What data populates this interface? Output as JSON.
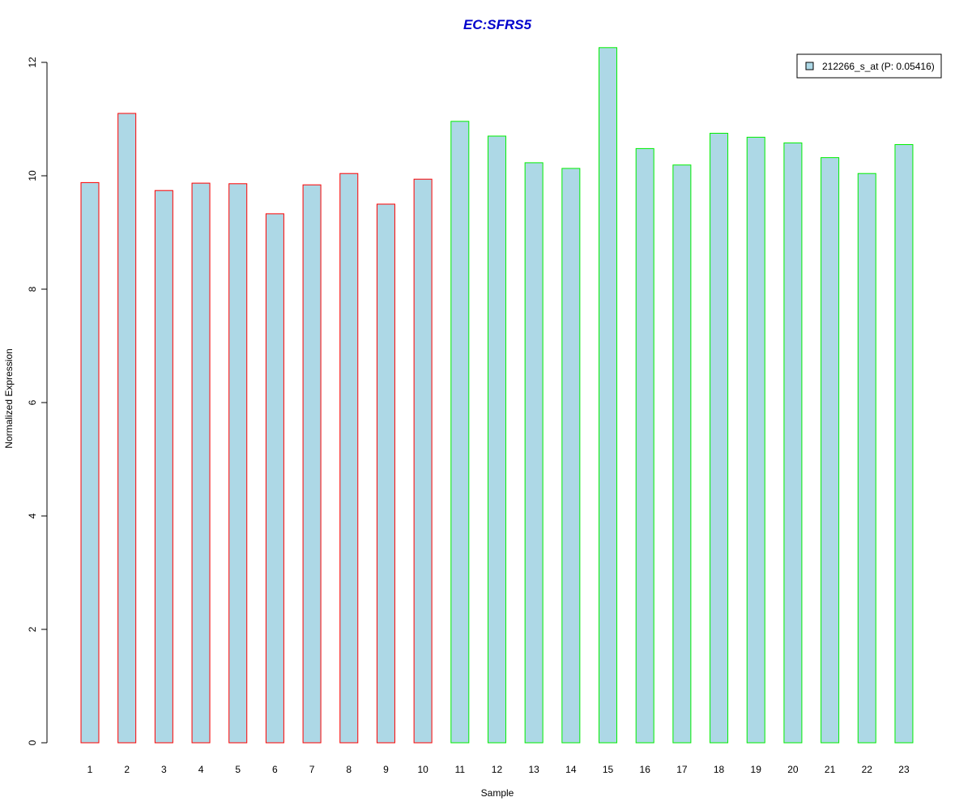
{
  "chart_data": {
    "type": "bar",
    "title": "EC:SFRS5",
    "xlabel": "Sample",
    "ylabel": "Normalized Expression",
    "categories": [
      "1",
      "2",
      "3",
      "4",
      "5",
      "6",
      "7",
      "8",
      "9",
      "10",
      "11",
      "12",
      "13",
      "14",
      "15",
      "16",
      "17",
      "18",
      "19",
      "20",
      "21",
      "22",
      "23"
    ],
    "series": [
      {
        "name": "212266_s_at (P: 0.05416)",
        "values": [
          9.88,
          11.1,
          9.74,
          9.87,
          9.86,
          9.33,
          9.84,
          10.04,
          9.5,
          9.94,
          10.96,
          10.7,
          10.23,
          10.13,
          12.26,
          10.48,
          10.19,
          10.75,
          10.68,
          10.58,
          10.32,
          10.04,
          10.55
        ]
      }
    ],
    "group_border_colors": [
      "#ff0000",
      "#ff0000",
      "#ff0000",
      "#ff0000",
      "#ff0000",
      "#ff0000",
      "#ff0000",
      "#ff0000",
      "#ff0000",
      "#ff0000",
      "#00ee00",
      "#00ee00",
      "#00ee00",
      "#00ee00",
      "#00ee00",
      "#00ee00",
      "#00ee00",
      "#00ee00",
      "#00ee00",
      "#00ee00",
      "#00ee00",
      "#00ee00",
      "#00ee00"
    ],
    "bar_fill": "#add8e6",
    "title_color": "#0000cc",
    "yticks": [
      0,
      2,
      4,
      6,
      8,
      10,
      12
    ],
    "ylim": [
      0,
      12
    ],
    "grid": false,
    "legend_position": "top-right"
  }
}
